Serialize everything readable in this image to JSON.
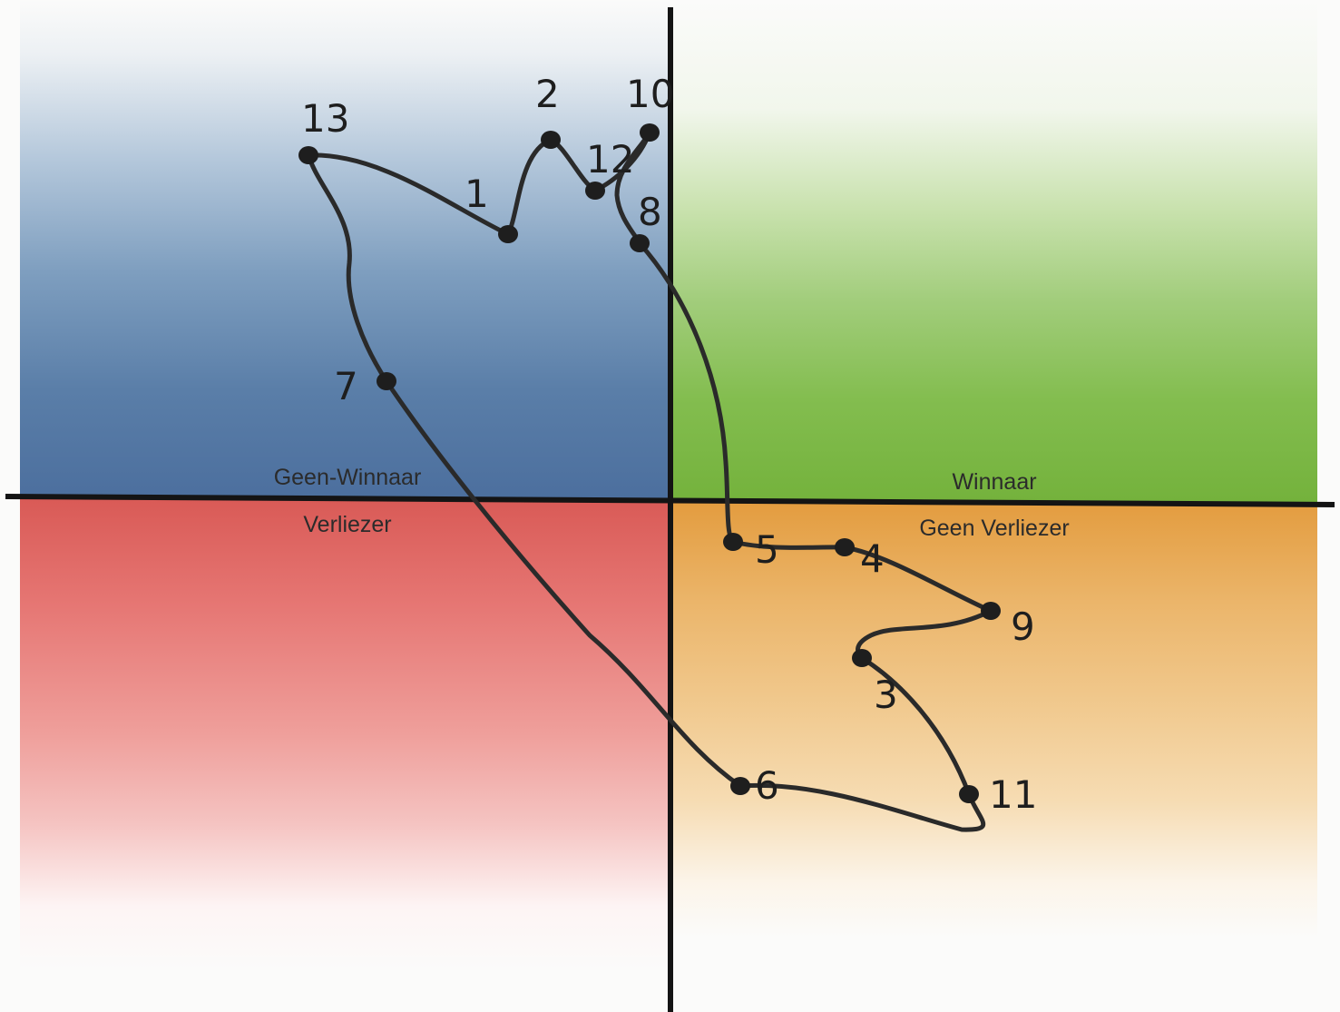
{
  "quadrants": {
    "top_left": {
      "label": "Geen-Winnaar",
      "color": "#4c6f9e"
    },
    "top_right": {
      "label": "Winnaar",
      "color": "#74b23c"
    },
    "bottom_left": {
      "label": "Verliezer",
      "color": "#d95a56"
    },
    "bottom_right": {
      "label": "Geen Verliezer",
      "color": "#e39c3f"
    }
  },
  "points": [
    {
      "id": "1",
      "label": "1"
    },
    {
      "id": "2",
      "label": "2"
    },
    {
      "id": "3",
      "label": "3"
    },
    {
      "id": "4",
      "label": "4"
    },
    {
      "id": "5",
      "label": "5"
    },
    {
      "id": "6",
      "label": "6"
    },
    {
      "id": "7",
      "label": "7"
    },
    {
      "id": "8",
      "label": "8"
    },
    {
      "id": "9",
      "label": "9"
    },
    {
      "id": "10",
      "label": "10"
    },
    {
      "id": "11",
      "label": "11"
    },
    {
      "id": "12",
      "label": "12"
    },
    {
      "id": "13",
      "label": "13"
    }
  ],
  "sequence": [
    "1",
    "2",
    "12",
    "10",
    "8",
    "5",
    "4",
    "9",
    "3",
    "11",
    "6",
    "7",
    "13",
    "1"
  ]
}
